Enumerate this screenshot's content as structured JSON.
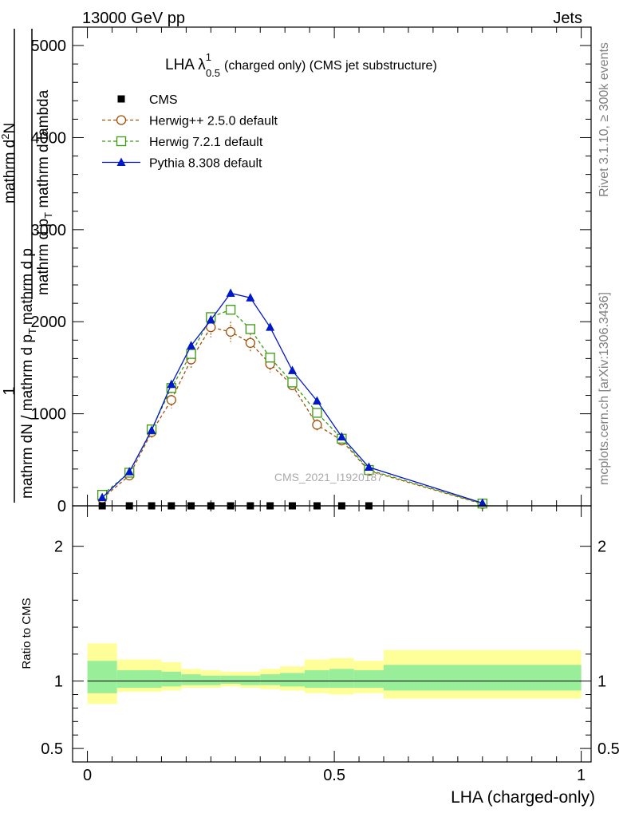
{
  "header": {
    "left": "13000 GeV pp",
    "right": "Jets"
  },
  "side_labels": {
    "rivet": "Rivet 3.1.10, ≥ 300k events",
    "mcplots": "mcplots.cern.ch [arXiv:1306.3436]"
  },
  "plot_title": {
    "main": "LHA λ",
    "sup": "1",
    "sub": "0.5",
    "rest": "(charged only) (CMS jet substructure)"
  },
  "watermark": "CMS_2021_I1920187",
  "y_axis_label": {
    "one": "1",
    "denominator": "mathrm dN / mathrm d p",
    "denominator_sub": "T",
    "denominator_rest": "mathrm d p",
    "numerator": "mathrm d",
    "numerator_sup": "2",
    "numerator_n": "N",
    "numerator_rest": "mathrm d p",
    "numerator_sub": "T",
    "numerator_tail": " mathrm d lambda"
  },
  "ratio_ylabel": "Ratio to CMS",
  "x_axis_label": "LHA (charged-only)",
  "chart_data": [
    {
      "type": "line",
      "title": "LHA λ^1_0.5 (charged only) (CMS jet substructure)",
      "xlabel": "LHA (charged-only)",
      "ylabel": "1/N dN/dp_T d²N/dp_T dλ",
      "xlim": [
        -0.03,
        1.02
      ],
      "ylim": [
        0,
        5200
      ],
      "yticks": [
        0,
        1000,
        2000,
        3000,
        4000,
        5000
      ],
      "ytick_labels": [
        "0",
        "1000",
        "2000",
        "3000",
        "4000",
        "5000"
      ],
      "legend_position": "top-left",
      "series": [
        {
          "name": "CMS",
          "marker": "square-filled",
          "color": "#000000",
          "x": [
            0.03,
            0.085,
            0.13,
            0.17,
            0.21,
            0.25,
            0.29,
            0.33,
            0.37,
            0.415,
            0.465,
            0.515,
            0.57
          ],
          "y": [
            0,
            0,
            0,
            0,
            0,
            0,
            0,
            0,
            0,
            0,
            0,
            0,
            0
          ]
        },
        {
          "name": "Herwig++ 2.5.0 default",
          "marker": "circle-open",
          "line": "dashed",
          "color": "#a0520a",
          "x": [
            0.03,
            0.085,
            0.13,
            0.17,
            0.21,
            0.25,
            0.29,
            0.33,
            0.37,
            0.415,
            0.465,
            0.515,
            0.57,
            0.8
          ],
          "y": [
            80,
            330,
            800,
            1150,
            1590,
            1940,
            1890,
            1770,
            1540,
            1310,
            880,
            710,
            380,
            20
          ],
          "err": [
            20,
            30,
            60,
            90,
            100,
            110,
            110,
            100,
            90,
            70,
            60,
            50,
            30,
            10
          ]
        },
        {
          "name": "Herwig 7.2.1 default",
          "marker": "square-open",
          "line": "dashed",
          "color": "#3a9a10",
          "x": [
            0.03,
            0.085,
            0.13,
            0.17,
            0.21,
            0.25,
            0.29,
            0.33,
            0.37,
            0.415,
            0.465,
            0.515,
            0.57,
            0.8
          ],
          "y": [
            120,
            360,
            830,
            1280,
            1650,
            2050,
            2130,
            1920,
            1610,
            1340,
            1010,
            730,
            390,
            25
          ],
          "err": [
            15,
            25,
            30,
            40,
            40,
            40,
            40,
            40,
            35,
            30,
            30,
            25,
            20,
            10
          ]
        },
        {
          "name": "Pythia 8.308 default",
          "marker": "triangle-filled",
          "line": "solid",
          "color": "#0018c8",
          "x": [
            0.03,
            0.085,
            0.13,
            0.17,
            0.21,
            0.25,
            0.29,
            0.33,
            0.37,
            0.415,
            0.465,
            0.515,
            0.57,
            0.8
          ],
          "y": [
            90,
            370,
            820,
            1320,
            1740,
            2020,
            2310,
            2260,
            1940,
            1470,
            1140,
            750,
            420,
            30
          ],
          "err": [
            15,
            25,
            30,
            40,
            40,
            40,
            40,
            40,
            35,
            30,
            30,
            25,
            20,
            10
          ]
        }
      ]
    },
    {
      "type": "area",
      "title": "",
      "xlabel": "LHA (charged-only)",
      "ylabel": "Ratio to CMS",
      "xlim": [
        -0.03,
        1.02
      ],
      "ylim": [
        0.4,
        2.3
      ],
      "yticks": [
        0.5,
        1,
        2
      ],
      "ytick_labels": [
        "0.5",
        "1",
        "2"
      ],
      "xticks": [
        0,
        0.5,
        1
      ],
      "xtick_labels": [
        "0",
        "0.5",
        "1"
      ],
      "reference_line": 1,
      "bins": [
        0,
        0.06,
        0.15,
        0.19,
        0.23,
        0.27,
        0.31,
        0.35,
        0.39,
        0.44,
        0.49,
        0.54,
        0.6,
        1.0
      ],
      "band_outer": {
        "color": "#ffff99",
        "lo": [
          0.83,
          0.92,
          0.93,
          0.95,
          0.95,
          0.96,
          0.95,
          0.94,
          0.93,
          0.91,
          0.9,
          0.91,
          0.87
        ],
        "hi": [
          1.28,
          1.16,
          1.14,
          1.09,
          1.08,
          1.07,
          1.07,
          1.09,
          1.11,
          1.16,
          1.17,
          1.15,
          1.23
        ]
      },
      "band_inner": {
        "color": "#99ee99",
        "lo": [
          0.91,
          0.95,
          0.96,
          0.97,
          0.97,
          0.98,
          0.97,
          0.97,
          0.96,
          0.95,
          0.95,
          0.95,
          0.93
        ],
        "hi": [
          1.15,
          1.08,
          1.07,
          1.05,
          1.04,
          1.04,
          1.04,
          1.05,
          1.06,
          1.08,
          1.09,
          1.08,
          1.12
        ]
      }
    }
  ]
}
